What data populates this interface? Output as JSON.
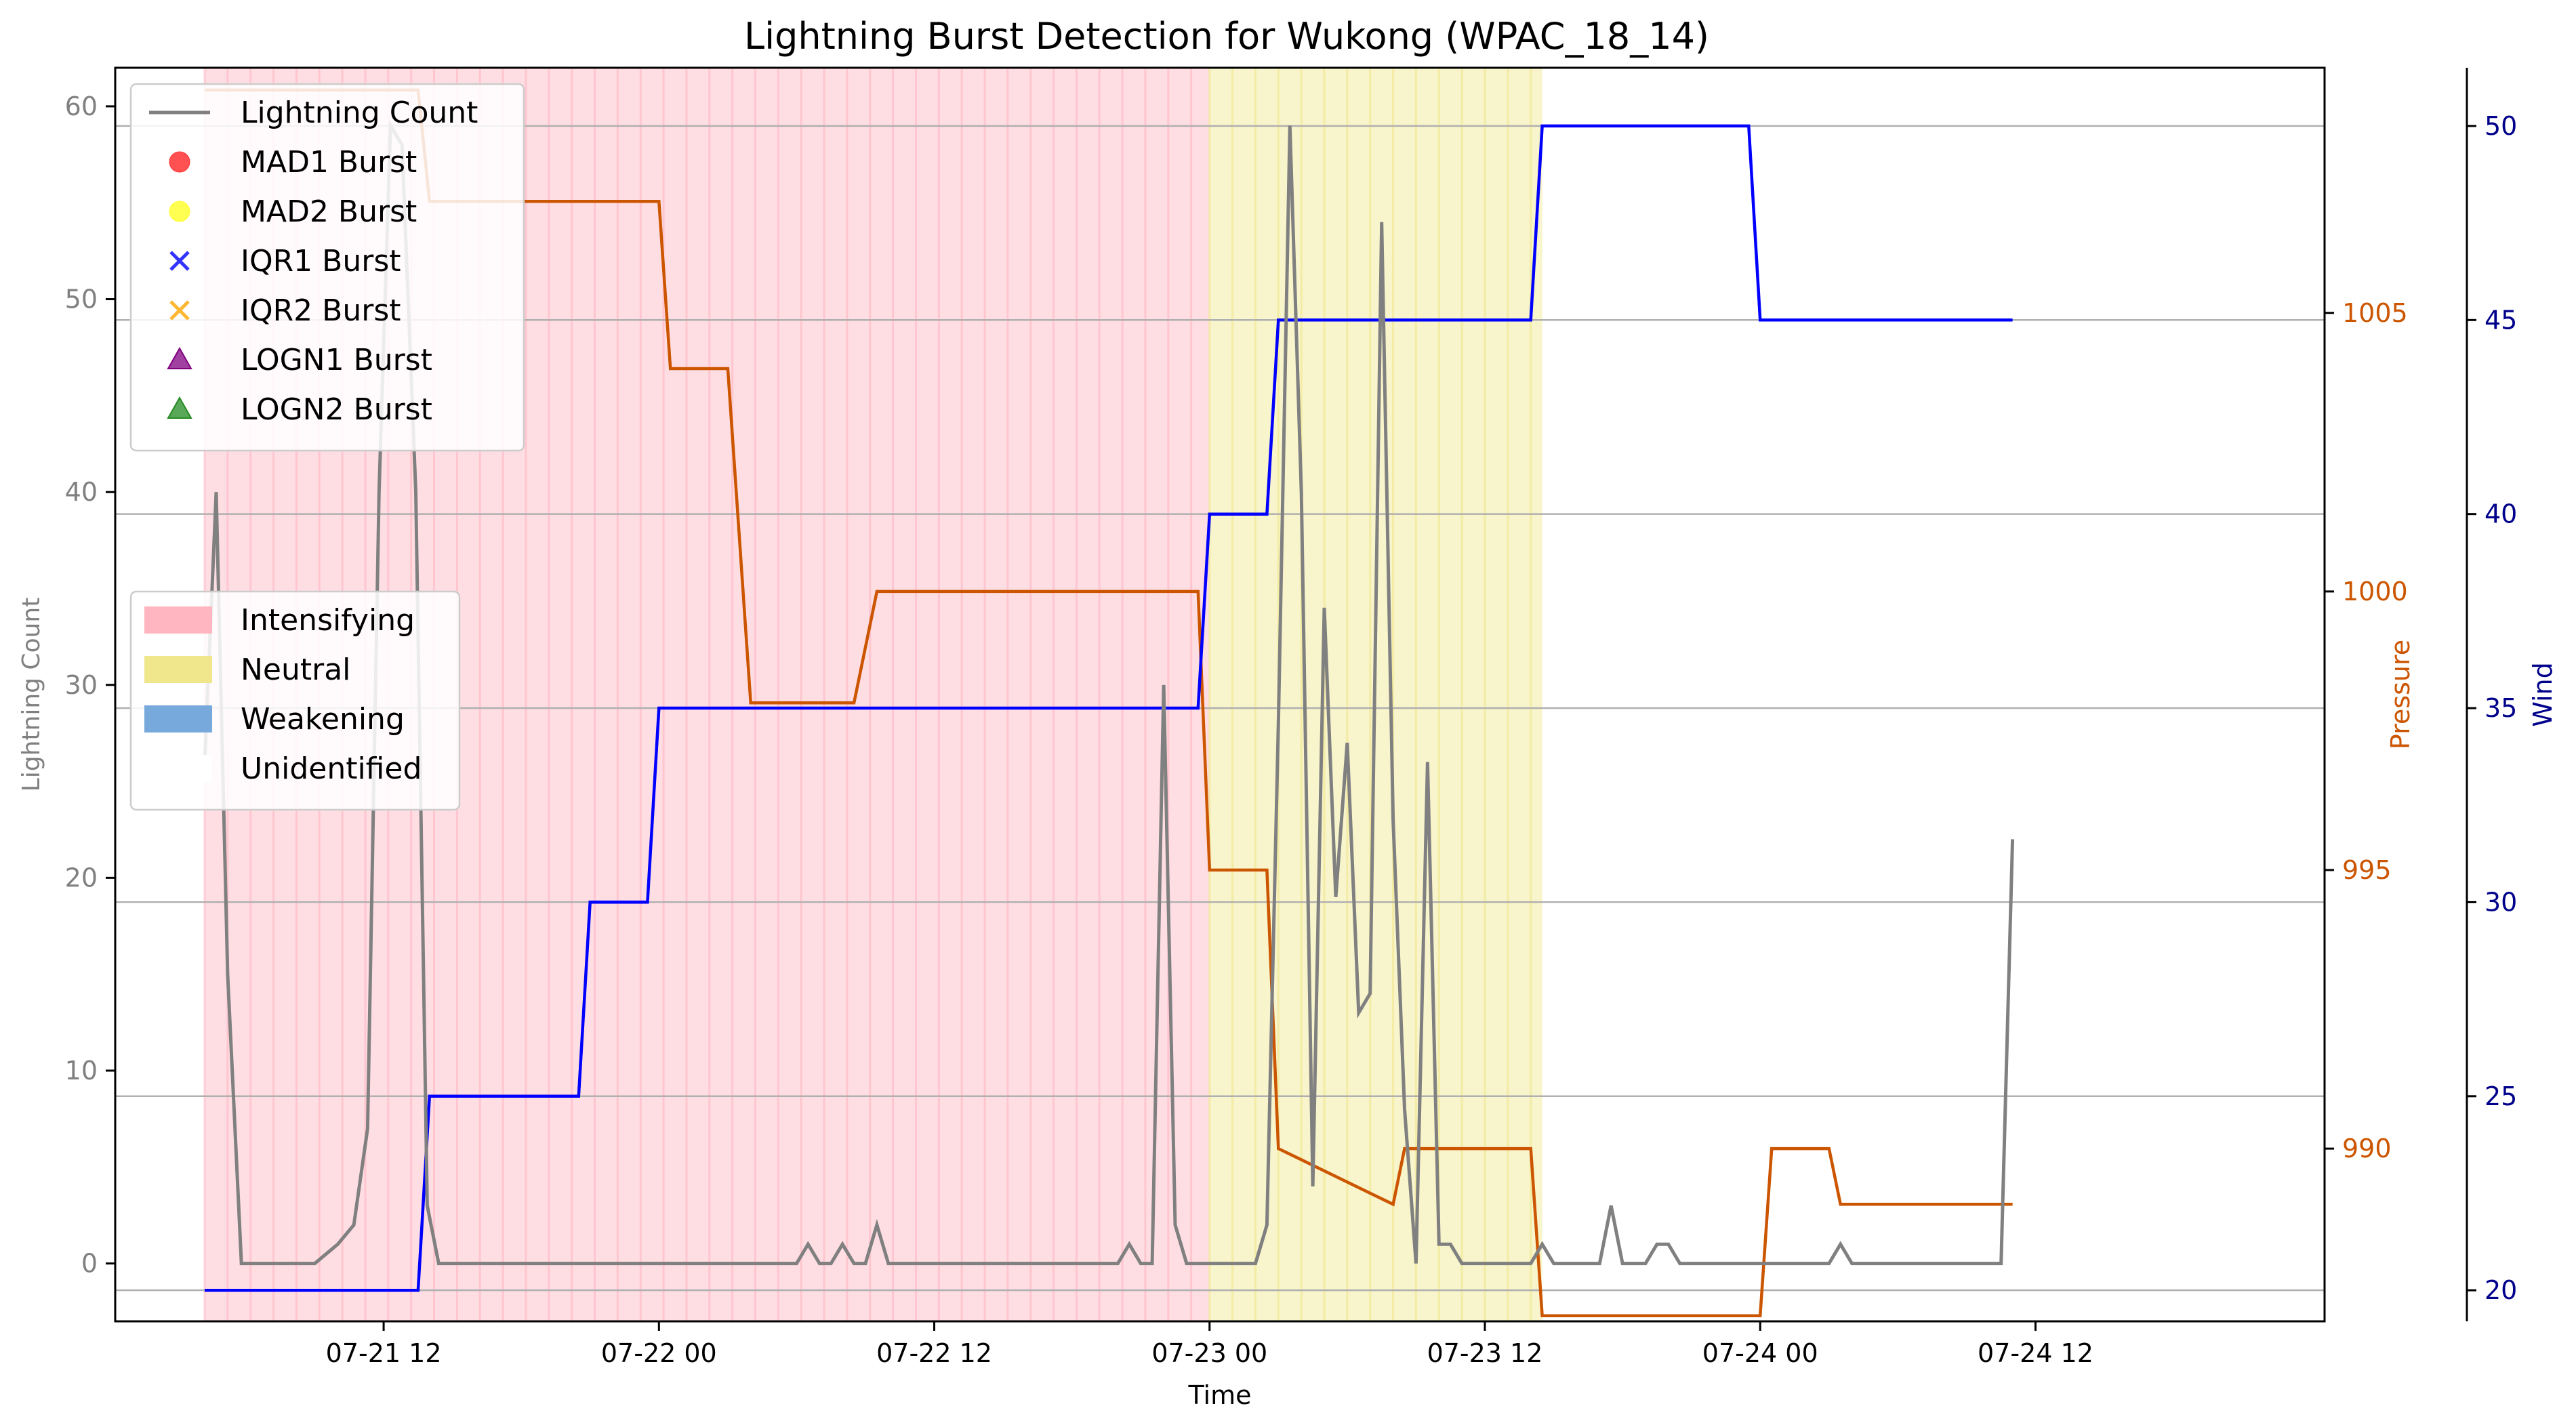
{
  "chart_data": {
    "type": "line",
    "title": "Lightning Burst Detection for Wukong (WPAC_18_14)",
    "xlabel": "Time",
    "ylabel_left": "Lightning Count",
    "ylabel_pressure": "Pressure",
    "ylabel_wind": "Wind",
    "x_ticks": [
      "07-21 12",
      "07-22 00",
      "07-22 12",
      "07-23 00",
      "07-23 12",
      "07-24 00",
      "07-24 12"
    ],
    "x_tick_hours": [
      12,
      24,
      36,
      48,
      60,
      72,
      84
    ],
    "x_range_hours": [
      0.3,
      96.6
    ],
    "time_origin_label": "07-21 00",
    "left_ticks": [
      0,
      10,
      20,
      30,
      40,
      50,
      60
    ],
    "left_range": [
      -3,
      62
    ],
    "pressure_ticks": [
      990,
      995,
      1000,
      1005
    ],
    "pressure_range": [
      986.9,
      1009.4
    ],
    "wind_ticks": [
      20,
      25,
      30,
      35,
      40,
      45,
      50
    ],
    "wind_range": [
      19.2,
      51.5
    ],
    "colors": {
      "lightning": "#808080",
      "pressure": "#cc5500",
      "wind": "#0000ff",
      "intensifying": "#ffb6c1",
      "neutral": "#f0e68c",
      "weakening": "#78a9dc",
      "mad1": "#ff3333",
      "mad2": "#ffff33",
      "iqr1": "#3333ff",
      "iqr2": "#ffb733",
      "logn1": "#800080",
      "logn2": "#228b22",
      "grid": "#b0b0b0",
      "axis_pressure": "#cc5500",
      "axis_wind": "#00008b"
    },
    "periods": [
      {
        "state": "Intensifying",
        "start": 4.2,
        "end": 48.0
      },
      {
        "state": "Neutral",
        "start": 48.0,
        "end": 62.5
      }
    ],
    "legend_markers": [
      {
        "label": "Lightning Count",
        "kind": "line",
        "color": "#808080"
      },
      {
        "label": "MAD1 Burst",
        "kind": "circle",
        "color": "#ff3333"
      },
      {
        "label": "MAD2 Burst",
        "kind": "circle",
        "color": "#ffff33"
      },
      {
        "label": "IQR1 Burst",
        "kind": "x",
        "color": "#3333ff"
      },
      {
        "label": "IQR2 Burst",
        "kind": "x",
        "color": "#ffb733"
      },
      {
        "label": "LOGN1 Burst",
        "kind": "triangle",
        "color": "#800080"
      },
      {
        "label": "LOGN2 Burst",
        "kind": "triangle",
        "color": "#228b22"
      }
    ],
    "legend_periods": [
      {
        "label": "Intensifying",
        "color": "#ffb6c1"
      },
      {
        "label": "Neutral",
        "color": "#f0e68c"
      },
      {
        "label": "Weakening",
        "color": "#78a9dc"
      },
      {
        "label": "Unidentified",
        "color": "#ffffff"
      }
    ],
    "series": [
      {
        "name": "Lightning Count",
        "axis": "left",
        "points": [
          [
            4.2,
            26
          ],
          [
            4.7,
            40
          ],
          [
            5.2,
            15
          ],
          [
            5.8,
            0
          ],
          [
            9.0,
            0
          ],
          [
            10.0,
            1
          ],
          [
            10.7,
            2
          ],
          [
            11.3,
            7
          ],
          [
            11.8,
            40
          ],
          [
            12.3,
            59
          ],
          [
            12.8,
            58
          ],
          [
            13.4,
            40
          ],
          [
            13.9,
            3
          ],
          [
            14.4,
            0
          ],
          [
            25.0,
            0
          ],
          [
            30.0,
            0
          ],
          [
            30.5,
            1
          ],
          [
            31.0,
            0
          ],
          [
            31.5,
            0
          ],
          [
            32.0,
            1
          ],
          [
            32.5,
            0
          ],
          [
            33.0,
            0
          ],
          [
            33.5,
            2
          ],
          [
            34.0,
            0
          ],
          [
            44.0,
            0
          ],
          [
            44.5,
            1
          ],
          [
            45.0,
            0
          ],
          [
            45.5,
            0
          ],
          [
            46.0,
            30
          ],
          [
            46.5,
            2
          ],
          [
            47.0,
            0
          ],
          [
            50.0,
            0
          ],
          [
            50.5,
            2
          ],
          [
            51.0,
            28
          ],
          [
            51.5,
            59
          ],
          [
            52.0,
            40
          ],
          [
            52.5,
            4
          ],
          [
            53.0,
            34
          ],
          [
            53.5,
            19
          ],
          [
            54.0,
            27
          ],
          [
            54.5,
            13
          ],
          [
            55.0,
            14
          ],
          [
            55.5,
            54
          ],
          [
            56.0,
            23
          ],
          [
            56.5,
            8
          ],
          [
            57.0,
            0
          ],
          [
            57.5,
            26
          ],
          [
            58.0,
            1
          ],
          [
            58.5,
            1
          ],
          [
            59.0,
            0
          ],
          [
            62.0,
            0
          ],
          [
            62.5,
            1
          ],
          [
            63.0,
            0
          ],
          [
            65.0,
            0
          ],
          [
            65.5,
            3
          ],
          [
            66.0,
            0
          ],
          [
            67.0,
            0
          ],
          [
            67.5,
            1
          ],
          [
            68.0,
            1
          ],
          [
            68.5,
            0
          ],
          [
            75.0,
            0
          ],
          [
            75.5,
            1
          ],
          [
            76.0,
            0
          ],
          [
            82.5,
            0
          ],
          [
            83.0,
            22
          ]
        ]
      },
      {
        "name": "Pressure",
        "axis": "pressure",
        "points": [
          [
            4.2,
            1009
          ],
          [
            11.5,
            1009
          ],
          [
            12.0,
            1009
          ],
          [
            13.5,
            1009
          ],
          [
            14.0,
            1007
          ],
          [
            20.5,
            1007
          ],
          [
            24.0,
            1007
          ],
          [
            24.5,
            1004
          ],
          [
            27.0,
            1004
          ],
          [
            28.0,
            998
          ],
          [
            32.5,
            998
          ],
          [
            33.5,
            1000
          ],
          [
            45.5,
            1000
          ],
          [
            47.5,
            1000
          ],
          [
            48.0,
            995
          ],
          [
            50.5,
            995
          ],
          [
            51.0,
            990
          ],
          [
            56.0,
            989
          ],
          [
            56.5,
            990
          ],
          [
            62.0,
            990
          ],
          [
            62.5,
            987
          ],
          [
            72.0,
            987
          ],
          [
            72.5,
            990
          ],
          [
            75.0,
            990
          ],
          [
            75.5,
            989
          ],
          [
            83.0,
            989
          ]
        ],
        "steps": [
          [
            4.2,
            1009
          ],
          [
            13.5,
            1009
          ],
          [
            14.0,
            1007
          ],
          [
            20.5,
            1007
          ],
          [
            21.0,
            1004
          ],
          [
            23.5,
            1004
          ],
          [
            24.0,
            998
          ],
          [
            24.5,
            998
          ]
        ]
      },
      {
        "name": "Wind",
        "axis": "wind",
        "points": [
          [
            4.2,
            20
          ],
          [
            13.5,
            20
          ],
          [
            14.0,
            25
          ],
          [
            20.5,
            25
          ],
          [
            21.0,
            30
          ],
          [
            23.5,
            30
          ],
          [
            24.0,
            35
          ],
          [
            47.5,
            35
          ],
          [
            48.0,
            40
          ],
          [
            50.5,
            40
          ],
          [
            51.0,
            45
          ],
          [
            62.0,
            45
          ],
          [
            62.5,
            50
          ],
          [
            71.5,
            50
          ],
          [
            72.0,
            45
          ],
          [
            83.0,
            45
          ]
        ]
      }
    ]
  }
}
